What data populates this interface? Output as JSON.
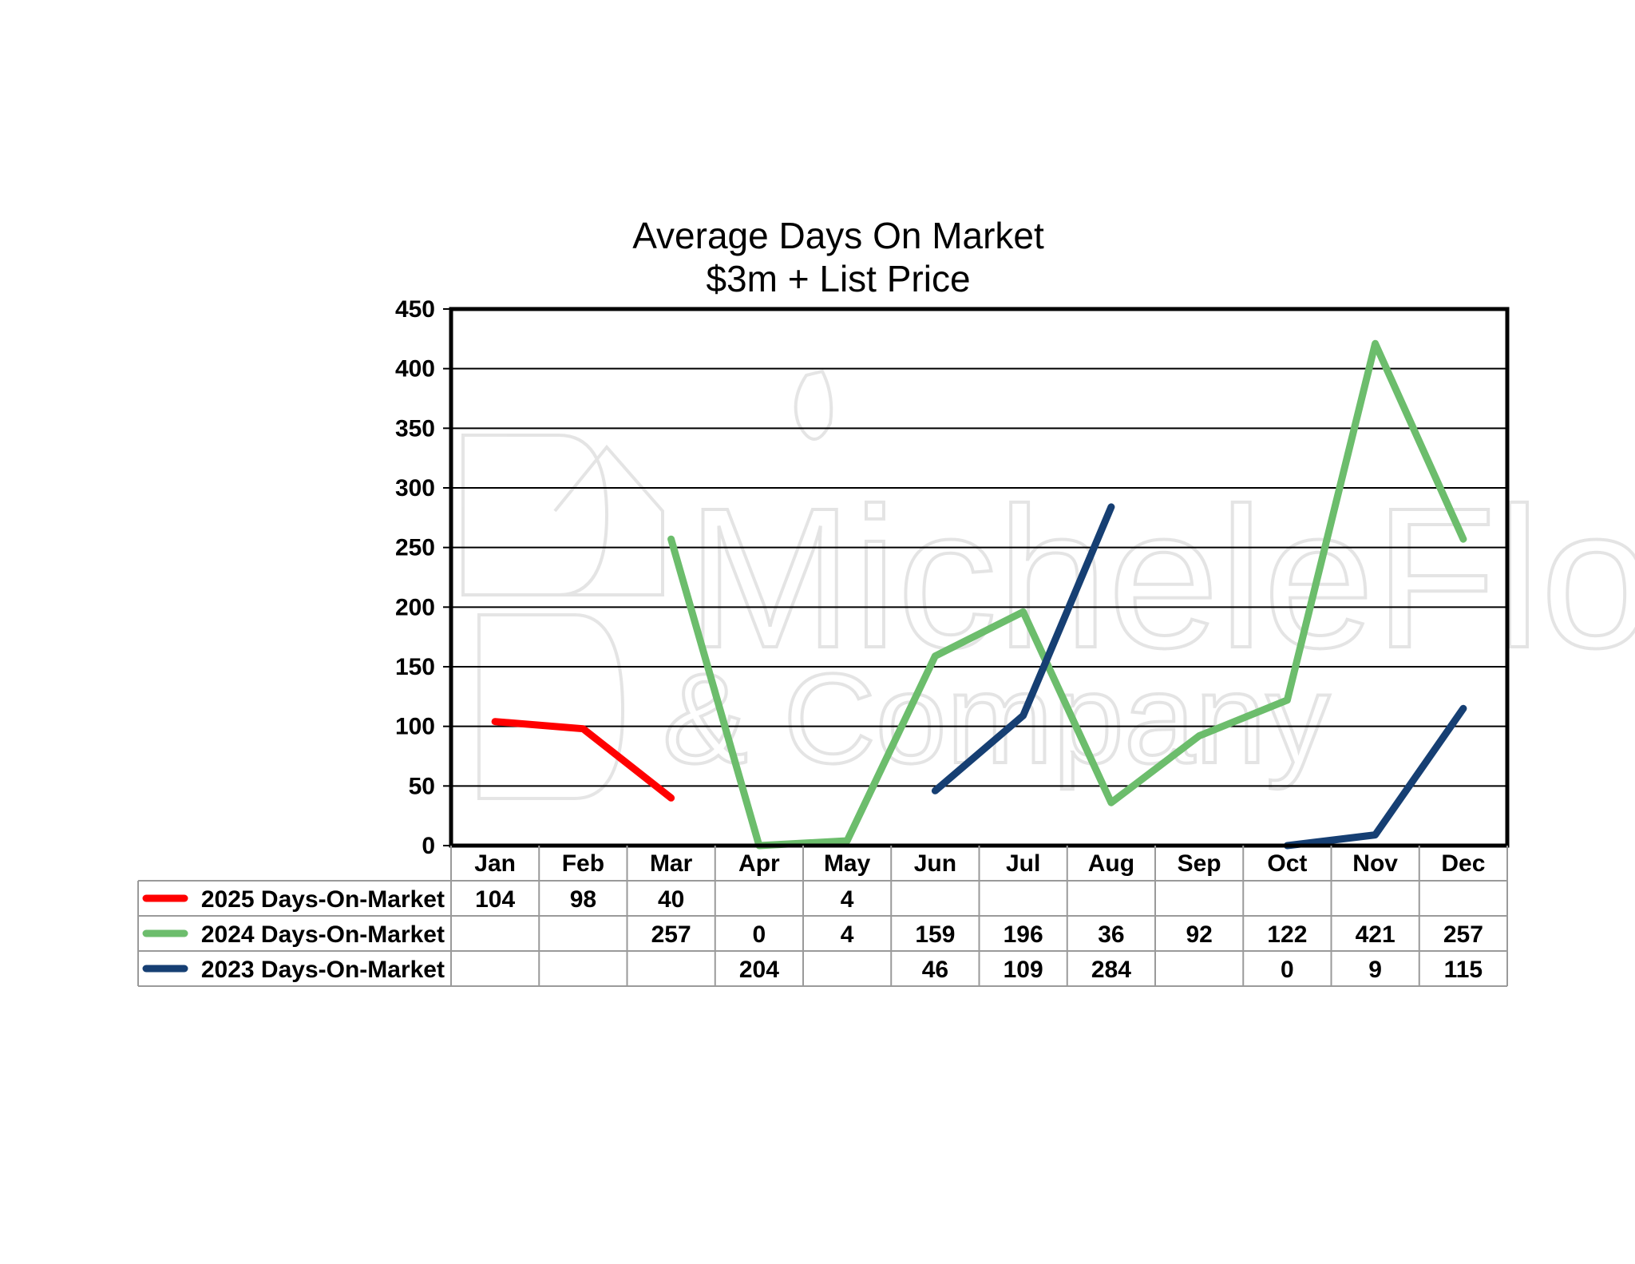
{
  "chart_data": {
    "type": "line",
    "title": "Average Days On Market",
    "subtitle": "$3m + List Price",
    "xlabel": "",
    "ylabel": "",
    "categories": [
      "Jan",
      "Feb",
      "Mar",
      "Apr",
      "May",
      "Jun",
      "Jul",
      "Aug",
      "Sep",
      "Oct",
      "Nov",
      "Dec"
    ],
    "ylim": [
      0,
      450
    ],
    "yticks": [
      0,
      50,
      100,
      150,
      200,
      250,
      300,
      350,
      400,
      450
    ],
    "grid": true,
    "legend": "data-table-left",
    "series": [
      {
        "name": "2025 Days-On-Market",
        "color": "#ff0000",
        "values": [
          104,
          98,
          40,
          null,
          4,
          null,
          null,
          null,
          null,
          null,
          null,
          null
        ]
      },
      {
        "name": "2024 Days-On-Market",
        "color": "#6cbd6c",
        "values": [
          null,
          null,
          257,
          0,
          4,
          159,
          196,
          36,
          92,
          122,
          421,
          257
        ]
      },
      {
        "name": "2023 Days-On-Market",
        "color": "#163f73",
        "values": [
          null,
          null,
          null,
          204,
          null,
          46,
          109,
          284,
          null,
          0,
          9,
          115
        ]
      }
    ]
  }
}
